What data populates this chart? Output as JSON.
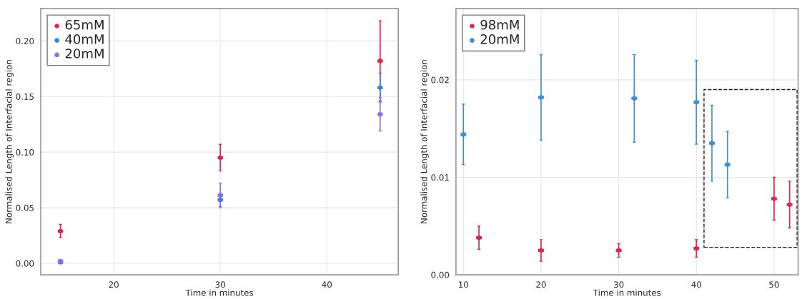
{
  "chart_data": [
    {
      "type": "scatter",
      "xlabel": "Time in minutes",
      "ylabel": "Normalised Length of Interfacial region",
      "xlim": [
        13.15,
        46.7
      ],
      "ylim": [
        -0.0103,
        0.229
      ],
      "xticks": [
        20,
        30,
        40
      ],
      "yticks": [
        {
          "value": 0,
          "label": "0.00"
        },
        {
          "value": 0.05,
          "label": "0.05"
        },
        {
          "value": 0.1,
          "label": "0.10"
        },
        {
          "value": 0.15,
          "label": "0.15"
        },
        {
          "value": 0.2,
          "label": "0.20"
        }
      ],
      "grid": true,
      "legend": "top left",
      "marker": "circle",
      "series": [
        {
          "name": "65mM",
          "color": "#d62b4b",
          "x": [
            15,
            30,
            45
          ],
          "values": [
            0.029,
            0.095,
            0.182
          ],
          "errors": [
            0.006,
            0.012,
            0.036
          ],
          "xerrors": [
            0.2,
            0.2,
            0.2
          ]
        },
        {
          "name": "40mM",
          "color": "#3b82d9",
          "x": [
            15,
            30,
            45
          ],
          "values": [
            0.001,
            0.057,
            0.158
          ],
          "errors": [
            0.0005,
            0.006,
            0.013
          ],
          "xerrors": [
            0.2,
            0.2,
            0.2
          ]
        },
        {
          "name": "20mM",
          "color": "#8a72e6",
          "x": [
            15,
            30,
            45
          ],
          "values": [
            0.002,
            0.061,
            0.134
          ],
          "errors": [
            0.001,
            0.011,
            0.015
          ],
          "xerrors": [
            0.2,
            0.2,
            0.2
          ]
        }
      ]
    },
    {
      "type": "scatter",
      "xlabel": "Time in minutes",
      "ylabel": "Normalised Length of Interfacial region",
      "xlim": [
        9.04,
        53.1
      ],
      "ylim": [
        0,
        0.0273
      ],
      "xticks": [
        10,
        20,
        30,
        40,
        50
      ],
      "yticks": [
        {
          "value": 0,
          "label": "0.00"
        },
        {
          "value": 0.01,
          "label": "0.01"
        },
        {
          "value": 0.02,
          "label": "0.02"
        }
      ],
      "grid": true,
      "legend": "top left",
      "marker": "circle",
      "series": [
        {
          "name": "98mM",
          "color": "#d62b4b",
          "x": [
            12,
            20,
            30,
            40,
            50,
            52
          ],
          "values": [
            0.0038,
            0.0025,
            0.0025,
            0.0027,
            0.0078,
            0.0072
          ],
          "errors": [
            0.0012,
            0.0011,
            0.0007,
            0.0009,
            0.0022,
            0.0024
          ],
          "xerrors": [
            0.3,
            0.3,
            0.3,
            0.3,
            0.3,
            0.3
          ]
        },
        {
          "name": "20mM",
          "color": "#3b8fd9",
          "x": [
            10,
            20,
            32,
            40,
            42,
            44
          ],
          "values": [
            0.0144,
            0.0182,
            0.0181,
            0.0177,
            0.0135,
            0.0113
          ],
          "errors": [
            0.0031,
            0.0044,
            0.0045,
            0.0043,
            0.0039,
            0.0034
          ],
          "xerrors": [
            0.3,
            0.3,
            0.3,
            0.3,
            0.3,
            0.3
          ]
        }
      ]
    }
  ]
}
